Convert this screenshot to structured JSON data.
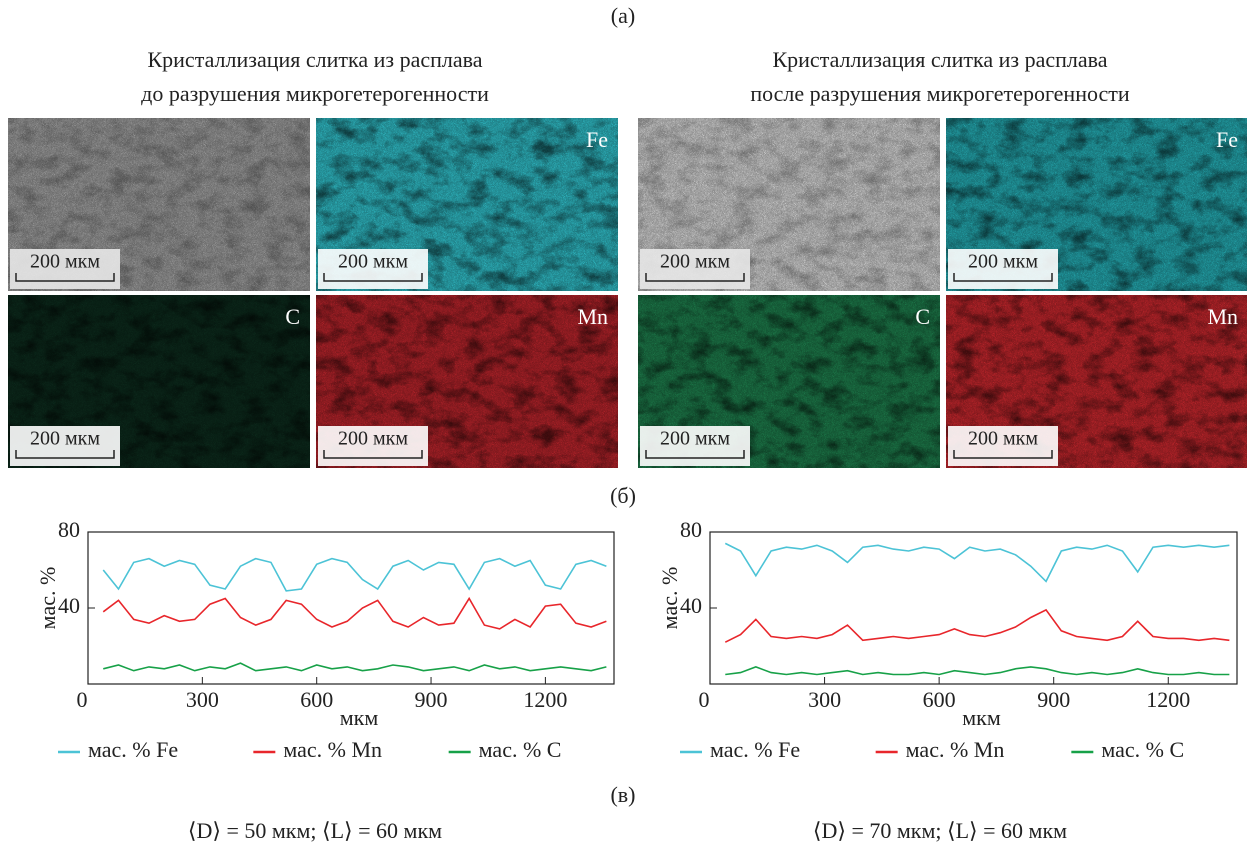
{
  "figure_labels": [
    "(а)",
    "(б)",
    "(в)"
  ],
  "panels": [
    {
      "title": [
        "Кристаллизация слитка из расплава",
        "до разрушения микрогетерогенности"
      ],
      "images": [
        {
          "scale": "200 мкм",
          "color": "#9c9c9c"
        },
        {
          "element": "Fe",
          "scale": "200 мкм",
          "color": "#2fb9c3"
        },
        {
          "element": "C",
          "scale": "200 мкм",
          "color": "#0c2a1c"
        },
        {
          "element": "Mn",
          "scale": "200 мкм",
          "color": "#b3232a"
        }
      ]
    },
    {
      "title": [
        "Кристаллизация слитка из расплава",
        "после разрушения микрогетерогенности"
      ],
      "images": [
        {
          "scale": "200 мкм",
          "color": "#cfcfcf"
        },
        {
          "element": "Fe",
          "scale": "200 мкм",
          "color": "#24a7ae"
        },
        {
          "element": "C",
          "scale": "200 мкм",
          "color": "#1d7a4a"
        },
        {
          "element": "Mn",
          "scale": "200 мкм",
          "color": "#c0262c"
        }
      ]
    }
  ],
  "summary": [
    "⟨D⟩ = 50 мкм; ⟨L⟩ = 60 мкм",
    "⟨D⟩ = 70 мкм; ⟨L⟩ = 60 мкм"
  ],
  "chart_data": [
    {
      "type": "line",
      "xlabel": "мкм",
      "ylabel": "мас. %",
      "x": [
        40,
        80,
        120,
        160,
        200,
        240,
        280,
        320,
        360,
        400,
        440,
        480,
        520,
        560,
        600,
        640,
        680,
        720,
        760,
        800,
        840,
        880,
        920,
        960,
        1000,
        1040,
        1080,
        1120,
        1160,
        1200,
        1240,
        1280,
        1320,
        1360
      ],
      "xlim": [
        0,
        1380
      ],
      "xticks": [
        0,
        300,
        600,
        900,
        1200
      ],
      "ylim": [
        0,
        80
      ],
      "yticks": [
        40,
        80
      ],
      "series": [
        {
          "name": "мас. % Fe",
          "color": "#4cc3d6",
          "values": [
            60,
            50,
            64,
            66,
            62,
            65,
            63,
            52,
            50,
            62,
            66,
            64,
            49,
            50,
            63,
            66,
            64,
            55,
            50,
            62,
            65,
            60,
            64,
            63,
            50,
            64,
            66,
            62,
            65,
            52,
            50,
            63,
            65,
            62
          ]
        },
        {
          "name": "мас. % Mn",
          "color": "#e8262b",
          "values": [
            38,
            44,
            34,
            32,
            36,
            33,
            34,
            42,
            45,
            35,
            31,
            34,
            44,
            42,
            34,
            30,
            33,
            40,
            44,
            33,
            30,
            35,
            31,
            32,
            45,
            31,
            29,
            34,
            30,
            41,
            42,
            32,
            30,
            33
          ]
        },
        {
          "name": "мас. % C",
          "color": "#17a148",
          "values": [
            8,
            10,
            7,
            9,
            8,
            10,
            7,
            9,
            8,
            11,
            7,
            8,
            9,
            7,
            10,
            8,
            9,
            7,
            8,
            10,
            9,
            7,
            8,
            9,
            7,
            10,
            8,
            9,
            7,
            8,
            9,
            8,
            7,
            9
          ]
        }
      ]
    },
    {
      "type": "line",
      "xlabel": "мкм",
      "ylabel": "мас. %",
      "x": [
        40,
        80,
        120,
        160,
        200,
        240,
        280,
        320,
        360,
        400,
        440,
        480,
        520,
        560,
        600,
        640,
        680,
        720,
        760,
        800,
        840,
        880,
        920,
        960,
        1000,
        1040,
        1080,
        1120,
        1160,
        1200,
        1240,
        1280,
        1320,
        1360
      ],
      "xlim": [
        0,
        1380
      ],
      "xticks": [
        0,
        300,
        600,
        900,
        1200
      ],
      "ylim": [
        0,
        80
      ],
      "yticks": [
        40,
        80
      ],
      "series": [
        {
          "name": "мас. % Fe",
          "color": "#4cc3d6",
          "values": [
            74,
            70,
            57,
            70,
            72,
            71,
            73,
            70,
            64,
            72,
            73,
            71,
            70,
            72,
            71,
            66,
            72,
            70,
            71,
            68,
            62,
            54,
            70,
            72,
            71,
            73,
            70,
            59,
            72,
            73,
            72,
            73,
            72,
            73
          ]
        },
        {
          "name": "мас. % Mn",
          "color": "#e8262b",
          "values": [
            22,
            26,
            34,
            25,
            24,
            25,
            24,
            26,
            31,
            23,
            24,
            25,
            24,
            25,
            26,
            29,
            26,
            25,
            27,
            30,
            35,
            39,
            28,
            25,
            24,
            23,
            25,
            33,
            25,
            24,
            24,
            23,
            24,
            23
          ]
        },
        {
          "name": "мас. % C",
          "color": "#17a148",
          "values": [
            5,
            6,
            9,
            6,
            5,
            6,
            5,
            6,
            7,
            5,
            6,
            5,
            5,
            6,
            5,
            7,
            6,
            5,
            6,
            8,
            9,
            8,
            6,
            5,
            6,
            5,
            6,
            8,
            6,
            5,
            5,
            6,
            5,
            5
          ]
        }
      ]
    }
  ]
}
